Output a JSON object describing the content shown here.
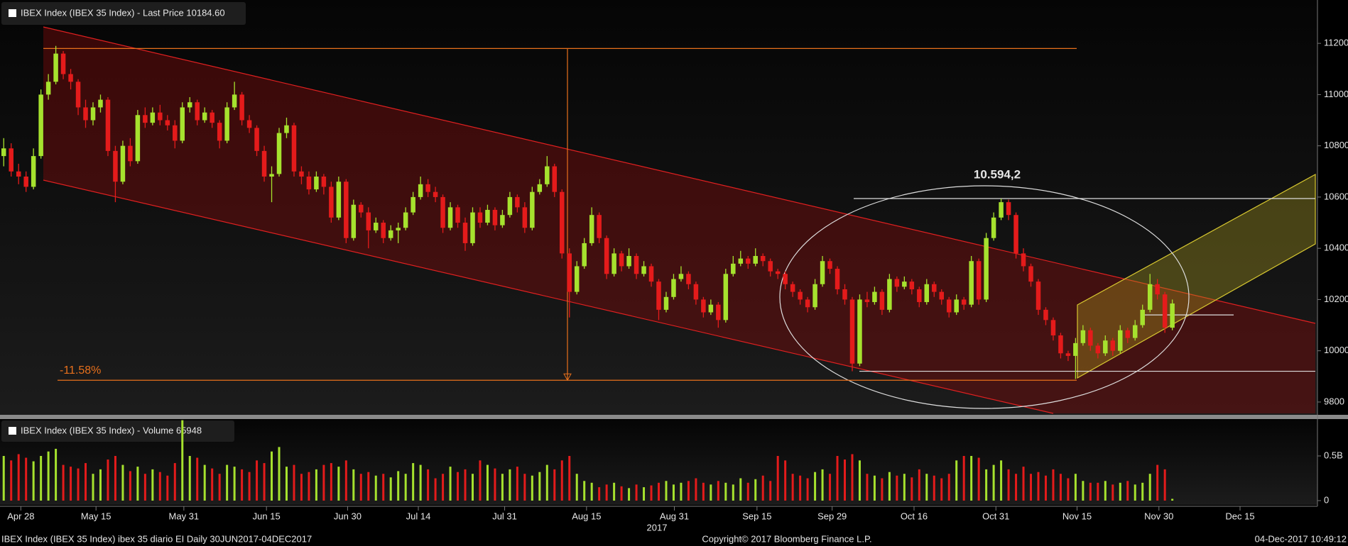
{
  "chart_data": {
    "type": "candlestick",
    "price_legend": "IBEX Index (IBEX 35 Index) - Last Price 10184.60",
    "volume_legend": "IBEX Index (IBEX 35 Index) - Volume 65948",
    "footer_left": "IBEX Index (IBEX 35 Index) ibex 35 diario EI  Daily 30JUN2017-04DEC2017",
    "footer_center": "Copyright© 2017 Bloomberg Finance L.P.",
    "footer_right": "04-Dec-2017 10:49:12",
    "x_axis_year": "2017",
    "annotations": [
      "10.594,2",
      "-11.58%"
    ],
    "up_color": "#a6e22e",
    "down_color": "#e41b1b",
    "xlim": [
      -0.5,
      176.5
    ],
    "xticks": [
      {
        "value": 2.3,
        "label": "Apr 28"
      },
      {
        "value": 12.4,
        "label": "May 15"
      },
      {
        "value": 24.2,
        "label": "May 31"
      },
      {
        "value": 35.3,
        "label": "Jun 15"
      },
      {
        "value": 46.2,
        "label": "Jun 30"
      },
      {
        "value": 55.7,
        "label": "Jul 14"
      },
      {
        "value": 67.3,
        "label": "Jul 31"
      },
      {
        "value": 78.3,
        "label": "Aug 15"
      },
      {
        "value": 90.1,
        "label": "Aug 31"
      },
      {
        "value": 101.2,
        "label": "Sep 15"
      },
      {
        "value": 111.3,
        "label": "Sep 29"
      },
      {
        "value": 122.3,
        "label": "Oct 16"
      },
      {
        "value": 133.3,
        "label": "Oct 31"
      },
      {
        "value": 144.2,
        "label": "Nov 15"
      },
      {
        "value": 155.2,
        "label": "Nov 30"
      },
      {
        "value": 166.1,
        "label": "Dec 15"
      }
    ],
    "ylim": [
      9750,
      11300
    ],
    "yticks": [
      9800,
      10000,
      10200,
      10400,
      10600,
      10800,
      11000,
      11200
    ],
    "reference_lines": [
      11180,
      9885,
      10594.2,
      9920,
      10140
    ],
    "volume_ylim": [
      0,
      0.9
    ],
    "volume_yticks": [
      0,
      {
        "value": 0.5,
        "label": "0.5B"
      }
    ],
    "candles": [
      [
        10760,
        10830,
        10720,
        10790
      ],
      [
        10790,
        10810,
        10680,
        10700
      ],
      [
        10700,
        10730,
        10650,
        10680
      ],
      [
        10680,
        10700,
        10620,
        10640
      ],
      [
        10640,
        10790,
        10630,
        10760
      ],
      [
        10760,
        11020,
        10750,
        11000
      ],
      [
        11000,
        11080,
        10980,
        11050
      ],
      [
        11050,
        11190,
        11040,
        11160
      ],
      [
        11160,
        11170,
        11060,
        11080
      ],
      [
        11080,
        11100,
        11020,
        11050
      ],
      [
        11050,
        11060,
        10920,
        10950
      ],
      [
        10950,
        10980,
        10870,
        10900
      ],
      [
        10900,
        10970,
        10880,
        10950
      ],
      [
        10950,
        11000,
        10930,
        10980
      ],
      [
        10980,
        10990,
        10760,
        10780
      ],
      [
        10780,
        10800,
        10580,
        10660
      ],
      [
        10660,
        10820,
        10650,
        10800
      ],
      [
        10800,
        10830,
        10720,
        10740
      ],
      [
        10740,
        10940,
        10730,
        10920
      ],
      [
        10920,
        10950,
        10870,
        10890
      ],
      [
        10890,
        10950,
        10880,
        10930
      ],
      [
        10930,
        10960,
        10880,
        10900
      ],
      [
        10900,
        10920,
        10860,
        10880
      ],
      [
        10880,
        10900,
        10790,
        10820
      ],
      [
        10820,
        10970,
        10810,
        10950
      ],
      [
        10950,
        10990,
        10930,
        10970
      ],
      [
        10970,
        10980,
        10880,
        10900
      ],
      [
        10900,
        10950,
        10890,
        10930
      ],
      [
        10930,
        10940,
        10870,
        10890
      ],
      [
        10890,
        10900,
        10790,
        10820
      ],
      [
        10820,
        10970,
        10810,
        10950
      ],
      [
        10950,
        11050,
        10940,
        11000
      ],
      [
        11000,
        11010,
        10880,
        10900
      ],
      [
        10900,
        10920,
        10850,
        10870
      ],
      [
        10870,
        10880,
        10760,
        10780
      ],
      [
        10780,
        10800,
        10660,
        10680
      ],
      [
        10680,
        10720,
        10580,
        10690
      ],
      [
        10690,
        10870,
        10680,
        10850
      ],
      [
        10850,
        10910,
        10830,
        10880
      ],
      [
        10880,
        10890,
        10680,
        10700
      ],
      [
        10700,
        10720,
        10650,
        10680
      ],
      [
        10680,
        10700,
        10610,
        10630
      ],
      [
        10630,
        10700,
        10620,
        10680
      ],
      [
        10680,
        10690,
        10610,
        10640
      ],
      [
        10640,
        10660,
        10500,
        10520
      ],
      [
        10520,
        10680,
        10510,
        10660
      ],
      [
        10660,
        10670,
        10420,
        10440
      ],
      [
        10440,
        10590,
        10430,
        10570
      ],
      [
        10570,
        10580,
        10520,
        10540
      ],
      [
        10540,
        10560,
        10400,
        10470
      ],
      [
        10470,
        10520,
        10460,
        10500
      ],
      [
        10500,
        10510,
        10420,
        10440
      ],
      [
        10440,
        10490,
        10430,
        10470
      ],
      [
        10470,
        10500,
        10420,
        10480
      ],
      [
        10480,
        10560,
        10470,
        10540
      ],
      [
        10540,
        10620,
        10530,
        10600
      ],
      [
        10600,
        10680,
        10590,
        10650
      ],
      [
        10650,
        10670,
        10600,
        10620
      ],
      [
        10620,
        10640,
        10580,
        10600
      ],
      [
        10600,
        10610,
        10460,
        10480
      ],
      [
        10480,
        10580,
        10470,
        10560
      ],
      [
        10560,
        10570,
        10480,
        10500
      ],
      [
        10500,
        10520,
        10390,
        10420
      ],
      [
        10420,
        10560,
        10410,
        10540
      ],
      [
        10540,
        10560,
        10480,
        10500
      ],
      [
        10500,
        10570,
        10490,
        10550
      ],
      [
        10550,
        10560,
        10470,
        10490
      ],
      [
        10490,
        10550,
        10480,
        10530
      ],
      [
        10530,
        10620,
        10520,
        10600
      ],
      [
        10600,
        10610,
        10540,
        10560
      ],
      [
        10560,
        10580,
        10460,
        10480
      ],
      [
        10480,
        10640,
        10470,
        10620
      ],
      [
        10620,
        10670,
        10610,
        10650
      ],
      [
        10650,
        10760,
        10640,
        10720
      ],
      [
        10720,
        10730,
        10600,
        10620
      ],
      [
        10620,
        10630,
        10360,
        10380
      ],
      [
        10380,
        10400,
        10130,
        10230
      ],
      [
        10230,
        10350,
        10220,
        10330
      ],
      [
        10330,
        10440,
        10320,
        10420
      ],
      [
        10420,
        10560,
        10410,
        10530
      ],
      [
        10530,
        10540,
        10420,
        10440
      ],
      [
        10440,
        10450,
        10280,
        10300
      ],
      [
        10300,
        10400,
        10290,
        10380
      ],
      [
        10380,
        10390,
        10310,
        10330
      ],
      [
        10330,
        10400,
        10320,
        10370
      ],
      [
        10370,
        10380,
        10280,
        10300
      ],
      [
        10300,
        10350,
        10290,
        10330
      ],
      [
        10330,
        10340,
        10250,
        10270
      ],
      [
        10270,
        10280,
        10120,
        10160
      ],
      [
        10160,
        10230,
        10150,
        10210
      ],
      [
        10210,
        10300,
        10200,
        10280
      ],
      [
        10280,
        10330,
        10270,
        10300
      ],
      [
        10300,
        10310,
        10240,
        10260
      ],
      [
        10260,
        10270,
        10180,
        10200
      ],
      [
        10200,
        10210,
        10130,
        10150
      ],
      [
        10150,
        10200,
        10140,
        10180
      ],
      [
        10180,
        10190,
        10090,
        10120
      ],
      [
        10120,
        10320,
        10110,
        10300
      ],
      [
        10300,
        10370,
        10290,
        10340
      ],
      [
        10340,
        10390,
        10330,
        10360
      ],
      [
        10360,
        10370,
        10320,
        10340
      ],
      [
        10340,
        10400,
        10330,
        10370
      ],
      [
        10370,
        10380,
        10330,
        10350
      ],
      [
        10350,
        10360,
        10290,
        10310
      ],
      [
        10310,
        10320,
        10280,
        10300
      ],
      [
        10300,
        10310,
        10240,
        10260
      ],
      [
        10260,
        10270,
        10210,
        10230
      ],
      [
        10230,
        10240,
        10180,
        10200
      ],
      [
        10200,
        10210,
        10150,
        10170
      ],
      [
        10170,
        10280,
        10160,
        10260
      ],
      [
        10260,
        10370,
        10250,
        10350
      ],
      [
        10350,
        10360,
        10300,
        10320
      ],
      [
        10320,
        10330,
        10220,
        10240
      ],
      [
        10240,
        10260,
        10180,
        10200
      ],
      [
        10200,
        10210,
        9920,
        9950
      ],
      [
        9950,
        10220,
        9940,
        10200
      ],
      [
        10200,
        10230,
        10170,
        10190
      ],
      [
        10190,
        10250,
        10180,
        10230
      ],
      [
        10230,
        10240,
        10140,
        10160
      ],
      [
        10160,
        10300,
        10150,
        10280
      ],
      [
        10280,
        10290,
        10230,
        10250
      ],
      [
        10250,
        10290,
        10240,
        10270
      ],
      [
        10270,
        10280,
        10220,
        10240
      ],
      [
        10240,
        10250,
        10170,
        10190
      ],
      [
        10190,
        10280,
        10180,
        10260
      ],
      [
        10260,
        10270,
        10210,
        10230
      ],
      [
        10230,
        10240,
        10180,
        10200
      ],
      [
        10200,
        10210,
        10130,
        10150
      ],
      [
        10150,
        10220,
        10140,
        10200
      ],
      [
        10200,
        10210,
        10160,
        10180
      ],
      [
        10180,
        10370,
        10170,
        10350
      ],
      [
        10350,
        10360,
        10180,
        10200
      ],
      [
        10200,
        10460,
        10190,
        10440
      ],
      [
        10440,
        10540,
        10430,
        10520
      ],
      [
        10520,
        10594,
        10510,
        10580
      ],
      [
        10580,
        10590,
        10510,
        10530
      ],
      [
        10530,
        10540,
        10360,
        10380
      ],
      [
        10380,
        10400,
        10310,
        10330
      ],
      [
        10330,
        10340,
        10250,
        10270
      ],
      [
        10270,
        10280,
        10140,
        10160
      ],
      [
        10160,
        10170,
        10100,
        10120
      ],
      [
        10120,
        10130,
        10040,
        10060
      ],
      [
        10060,
        10070,
        9970,
        9990
      ],
      [
        9990,
        10000,
        9960,
        9980
      ],
      [
        9980,
        10050,
        9890,
        10030
      ],
      [
        10030,
        10100,
        10020,
        10080
      ],
      [
        10080,
        10090,
        10000,
        10020
      ],
      [
        10020,
        10030,
        9970,
        9990
      ],
      [
        9990,
        10060,
        9980,
        10040
      ],
      [
        10040,
        10050,
        9980,
        10000
      ],
      [
        10000,
        10100,
        9990,
        10080
      ],
      [
        10080,
        10090,
        10030,
        10050
      ],
      [
        10050,
        10120,
        10040,
        10100
      ],
      [
        10100,
        10180,
        10090,
        10160
      ],
      [
        10160,
        10300,
        10150,
        10260
      ],
      [
        10260,
        10280,
        10200,
        10220
      ],
      [
        10220,
        10230,
        10070,
        10090
      ],
      [
        10090,
        10200,
        10080,
        10184.6
      ]
    ],
    "volumes": [
      0.5,
      0.45,
      0.52,
      0.48,
      0.44,
      0.5,
      0.55,
      0.58,
      0.4,
      0.38,
      0.36,
      0.42,
      0.3,
      0.35,
      0.46,
      0.5,
      0.4,
      0.33,
      0.38,
      0.3,
      0.35,
      0.32,
      0.28,
      0.42,
      0.9,
      0.5,
      0.48,
      0.4,
      0.36,
      0.3,
      0.4,
      0.38,
      0.35,
      0.32,
      0.45,
      0.42,
      0.55,
      0.6,
      0.38,
      0.4,
      0.3,
      0.32,
      0.35,
      0.4,
      0.42,
      0.38,
      0.45,
      0.35,
      0.3,
      0.32,
      0.28,
      0.3,
      0.26,
      0.33,
      0.3,
      0.42,
      0.4,
      0.35,
      0.25,
      0.3,
      0.38,
      0.32,
      0.35,
      0.3,
      0.45,
      0.4,
      0.36,
      0.3,
      0.35,
      0.38,
      0.3,
      0.28,
      0.32,
      0.4,
      0.35,
      0.45,
      0.5,
      0.3,
      0.22,
      0.2,
      0.15,
      0.18,
      0.2,
      0.16,
      0.14,
      0.18,
      0.15,
      0.17,
      0.2,
      0.22,
      0.18,
      0.2,
      0.22,
      0.25,
      0.2,
      0.18,
      0.22,
      0.2,
      0.18,
      0.25,
      0.2,
      0.24,
      0.28,
      0.22,
      0.5,
      0.45,
      0.3,
      0.28,
      0.25,
      0.32,
      0.35,
      0.3,
      0.5,
      0.46,
      0.52,
      0.45,
      0.3,
      0.28,
      0.25,
      0.32,
      0.28,
      0.3,
      0.26,
      0.35,
      0.3,
      0.28,
      0.25,
      0.3,
      0.45,
      0.5,
      0.5,
      0.48,
      0.35,
      0.4,
      0.45,
      0.35,
      0.3,
      0.38,
      0.3,
      0.32,
      0.28,
      0.35,
      0.3,
      0.25,
      0.3,
      0.22,
      0.2,
      0.2,
      0.22,
      0.18,
      0.2,
      0.22,
      0.18,
      0.2,
      0.3,
      0.4,
      0.35,
      0.02
    ]
  }
}
